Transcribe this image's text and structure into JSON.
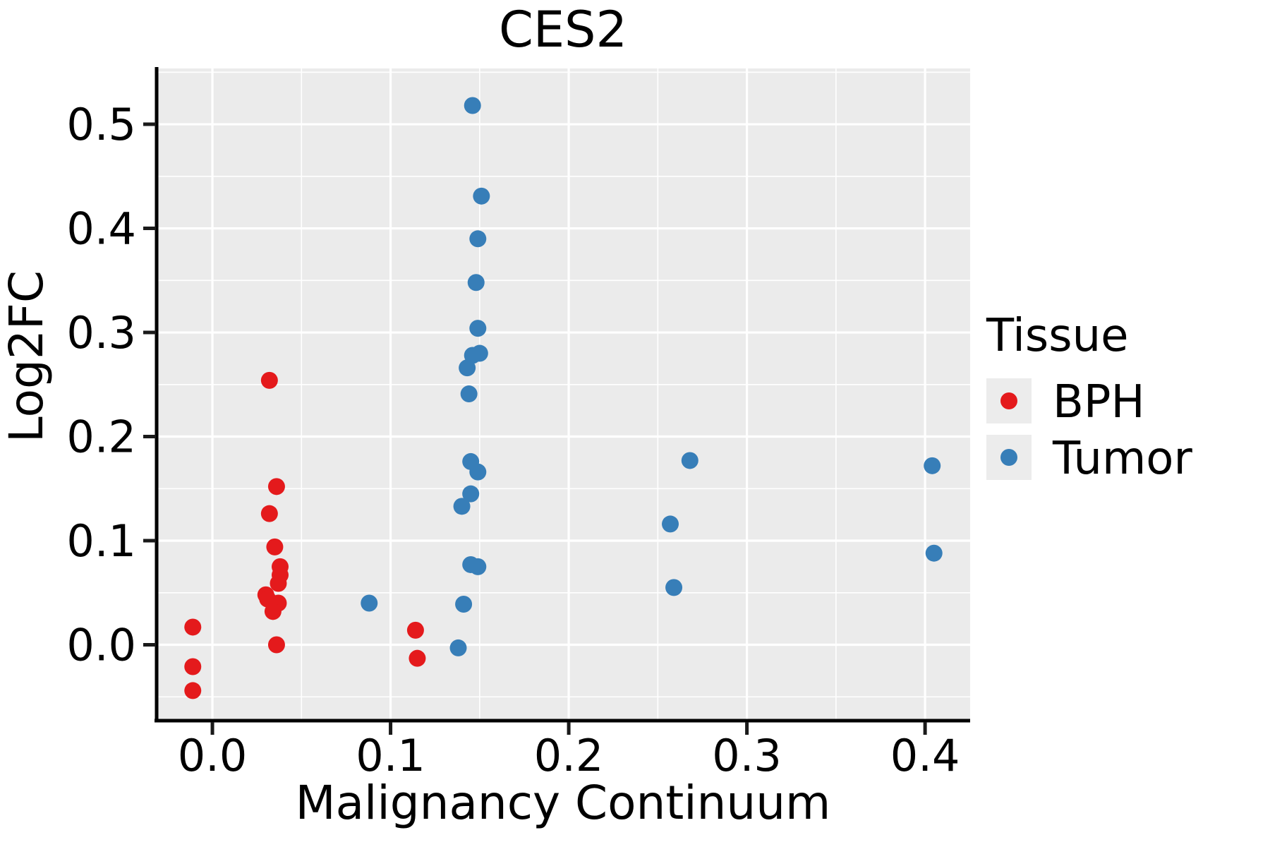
{
  "title": "CES2",
  "legend": {
    "title": "Tissue",
    "entries": [
      {
        "label": "BPH",
        "color": "#e41a1c"
      },
      {
        "label": "Tumor",
        "color": "#377eb8"
      }
    ]
  },
  "chart_data": {
    "type": "scatter",
    "title": "CES2",
    "xlabel": "Malignancy Continuum",
    "ylabel": "Log2FC",
    "xlim": [
      -0.0313,
      0.4253
    ],
    "ylim": [
      -0.0722,
      0.5536
    ],
    "x_ticks": [
      0.0,
      0.1,
      0.2,
      0.3,
      0.4
    ],
    "y_ticks": [
      0.0,
      0.1,
      0.2,
      0.3,
      0.4,
      0.5
    ],
    "grid": true,
    "minor_grid": true,
    "panel_color": "#ebebeb",
    "grid_color": "#ffffff",
    "legend_position": "right-center",
    "legend_title": "Tissue",
    "series": [
      {
        "name": "BPH",
        "color": "#e41a1c",
        "points": [
          [
            -0.011,
            0.017
          ],
          [
            -0.011,
            -0.021
          ],
          [
            -0.011,
            -0.044
          ],
          [
            0.032,
            0.254
          ],
          [
            0.036,
            0.152
          ],
          [
            0.032,
            0.126
          ],
          [
            0.035,
            0.094
          ],
          [
            0.038,
            0.075
          ],
          [
            0.038,
            0.067
          ],
          [
            0.037,
            0.059
          ],
          [
            0.03,
            0.048
          ],
          [
            0.031,
            0.044
          ],
          [
            0.037,
            0.04
          ],
          [
            0.034,
            0.032
          ],
          [
            0.036,
            0.0
          ],
          [
            0.114,
            0.014
          ],
          [
            0.115,
            -0.013
          ]
        ]
      },
      {
        "name": "Tumor",
        "color": "#377eb8",
        "points": [
          [
            0.146,
            0.518
          ],
          [
            0.151,
            0.431
          ],
          [
            0.149,
            0.39
          ],
          [
            0.148,
            0.348
          ],
          [
            0.149,
            0.304
          ],
          [
            0.15,
            0.28
          ],
          [
            0.146,
            0.278
          ],
          [
            0.143,
            0.266
          ],
          [
            0.144,
            0.241
          ],
          [
            0.145,
            0.176
          ],
          [
            0.149,
            0.166
          ],
          [
            0.145,
            0.145
          ],
          [
            0.14,
            0.133
          ],
          [
            0.145,
            0.077
          ],
          [
            0.149,
            0.075
          ],
          [
            0.141,
            0.039
          ],
          [
            0.138,
            -0.003
          ],
          [
            0.088,
            0.04
          ],
          [
            0.257,
            0.116
          ],
          [
            0.259,
            0.055
          ],
          [
            0.268,
            0.177
          ],
          [
            0.404,
            0.172
          ],
          [
            0.405,
            0.088
          ]
        ]
      }
    ]
  }
}
